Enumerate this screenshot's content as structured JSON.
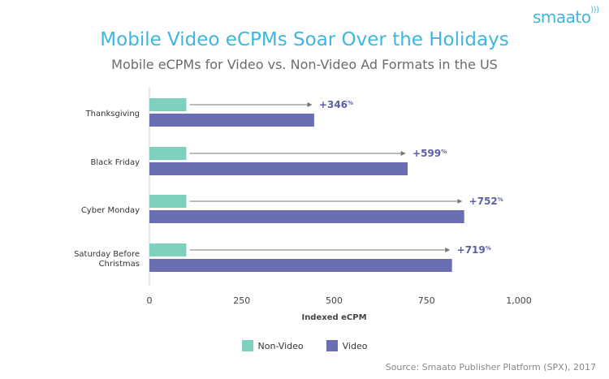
{
  "brand": {
    "logo_text": "smaato"
  },
  "source": "Source: Smaato Publisher Platform (SPX), 2017",
  "colors": {
    "non_video": "#7fd1bf",
    "video": "#6a6fb3",
    "title": "#3fb6dc",
    "label_accent": "#5a5fa8"
  },
  "chart_data": {
    "type": "bar",
    "orientation": "horizontal",
    "title": "Mobile Video eCPMs Soar Over the Holidays",
    "subtitle": "Mobile eCPMs for Video vs. Non-Video Ad Formats in the US",
    "xlabel": "Indexed eCPM",
    "ylabel": "",
    "xlim": [
      0,
      1000
    ],
    "xticks": [
      "0",
      "250",
      "500",
      "750",
      "1,000"
    ],
    "xtick_values": [
      0,
      250,
      500,
      750,
      1000
    ],
    "categories": [
      "Thanksgiving",
      "Black Friday",
      "Cyber Monday",
      "Saturday Before Christmas"
    ],
    "category_lines": [
      [
        "Thanksgiving"
      ],
      [
        "Black Friday"
      ],
      [
        "Cyber Monday"
      ],
      [
        "Saturday Before",
        "Christmas"
      ]
    ],
    "series": [
      {
        "name": "Non-Video",
        "values": [
          100,
          100,
          100,
          100
        ]
      },
      {
        "name": "Video",
        "values": [
          446,
          699,
          852,
          819
        ]
      }
    ],
    "annotations": [
      "+346%",
      "+599%",
      "+752%",
      "+719%"
    ],
    "legend": "bottom-center",
    "grid": false
  }
}
